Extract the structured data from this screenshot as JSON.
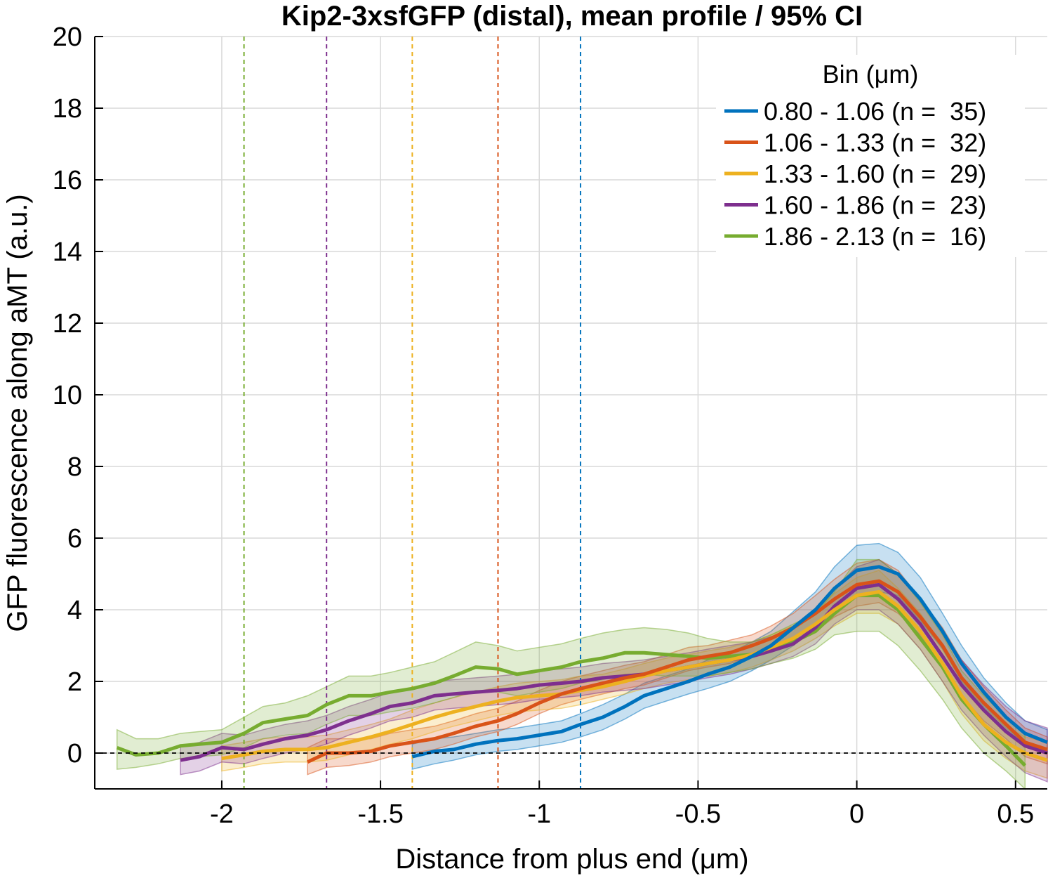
{
  "chart_data": {
    "type": "line",
    "title": "Kip2-3xsfGFP (distal), mean profile / 95% CI",
    "xlabel": "Distance from plus end (μm)",
    "ylabel": "GFP fluorescence along aMT (a.u.)",
    "xlim": [
      -2.4,
      0.6
    ],
    "ylim": [
      -1,
      20
    ],
    "xticks": [
      -2,
      -1.5,
      -1,
      -0.5,
      0,
      0.5
    ],
    "xtick_labels": [
      "-2",
      "-1.5",
      "-1",
      "-0.5",
      "0",
      "0.5"
    ],
    "yticks": [
      0,
      2,
      4,
      6,
      8,
      10,
      12,
      14,
      16,
      18,
      20
    ],
    "ytick_labels": [
      "0",
      "2",
      "4",
      "6",
      "8",
      "10",
      "12",
      "14",
      "16",
      "18",
      "20"
    ],
    "grid": true,
    "zero_line": {
      "y": 0,
      "style": "dashed",
      "color": "#000000"
    },
    "legend": {
      "title": "Bin (μm)",
      "position": "top-right"
    },
    "series": [
      {
        "name": "0.80 - 1.06 (n =  35)",
        "color": "#0072BD",
        "cutoff_x": -0.87,
        "x": [
          -1.4,
          -1.33,
          -1.27,
          -1.2,
          -1.13,
          -1.07,
          -1.0,
          -0.93,
          -0.87,
          -0.8,
          -0.73,
          -0.67,
          -0.6,
          -0.53,
          -0.47,
          -0.4,
          -0.33,
          -0.27,
          -0.2,
          -0.13,
          -0.07,
          0.0,
          0.07,
          0.13,
          0.2,
          0.27,
          0.33,
          0.4,
          0.47,
          0.53,
          0.6
        ],
        "y": [
          -0.1,
          0.05,
          0.1,
          0.25,
          0.35,
          0.4,
          0.5,
          0.6,
          0.8,
          1.0,
          1.3,
          1.6,
          1.8,
          2.0,
          2.2,
          2.4,
          2.7,
          3.0,
          3.5,
          4.0,
          4.6,
          5.1,
          5.2,
          5.0,
          4.3,
          3.4,
          2.5,
          1.7,
          1.0,
          0.55,
          0.3
        ],
        "ci_low": [
          -0.45,
          -0.3,
          -0.2,
          -0.05,
          0.05,
          0.1,
          0.2,
          0.3,
          0.45,
          0.65,
          0.95,
          1.25,
          1.45,
          1.65,
          1.8,
          2.0,
          2.3,
          2.6,
          3.0,
          3.5,
          4.0,
          4.4,
          4.5,
          4.4,
          3.7,
          2.9,
          2.0,
          1.3,
          0.7,
          0.25,
          0.0
        ],
        "ci_high": [
          0.25,
          0.4,
          0.45,
          0.55,
          0.65,
          0.7,
          0.8,
          0.9,
          1.1,
          1.35,
          1.65,
          1.95,
          2.15,
          2.35,
          2.6,
          2.8,
          3.1,
          3.4,
          3.95,
          4.5,
          5.2,
          5.8,
          5.85,
          5.6,
          4.9,
          3.9,
          3.0,
          2.1,
          1.4,
          0.9,
          0.65
        ]
      },
      {
        "name": "1.06 - 1.33 (n =  32)",
        "color": "#D95319",
        "cutoff_x": -1.13,
        "x": [
          -1.73,
          -1.67,
          -1.6,
          -1.53,
          -1.47,
          -1.4,
          -1.33,
          -1.27,
          -1.2,
          -1.13,
          -1.07,
          -1.0,
          -0.93,
          -0.87,
          -0.8,
          -0.73,
          -0.67,
          -0.6,
          -0.53,
          -0.47,
          -0.4,
          -0.33,
          -0.27,
          -0.2,
          -0.13,
          -0.07,
          0.0,
          0.07,
          0.13,
          0.2,
          0.27,
          0.33,
          0.4,
          0.47,
          0.53,
          0.6
        ],
        "y": [
          -0.25,
          0.0,
          0.0,
          0.05,
          0.2,
          0.3,
          0.4,
          0.55,
          0.75,
          0.9,
          1.1,
          1.4,
          1.65,
          1.8,
          1.95,
          2.1,
          2.2,
          2.4,
          2.6,
          2.7,
          2.8,
          3.0,
          3.2,
          3.5,
          3.9,
          4.3,
          4.7,
          4.8,
          4.5,
          3.8,
          3.0,
          2.1,
          1.4,
          0.8,
          0.3,
          0.1
        ],
        "ci_low": [
          -0.6,
          -0.4,
          -0.35,
          -0.25,
          -0.1,
          0.0,
          0.1,
          0.25,
          0.45,
          0.6,
          0.8,
          1.1,
          1.35,
          1.5,
          1.65,
          1.8,
          1.9,
          2.1,
          2.3,
          2.4,
          2.5,
          2.7,
          2.9,
          3.1,
          3.4,
          3.8,
          4.1,
          4.2,
          3.9,
          3.3,
          2.5,
          1.6,
          0.9,
          0.4,
          -0.1,
          -0.3
        ],
        "ci_high": [
          0.15,
          0.4,
          0.4,
          0.4,
          0.55,
          0.65,
          0.75,
          0.9,
          1.1,
          1.25,
          1.45,
          1.75,
          2.0,
          2.15,
          2.3,
          2.45,
          2.55,
          2.75,
          2.95,
          3.0,
          3.15,
          3.3,
          3.55,
          3.9,
          4.4,
          4.85,
          5.3,
          5.4,
          5.1,
          4.3,
          3.5,
          2.6,
          1.85,
          1.2,
          0.7,
          0.45
        ]
      },
      {
        "name": "1.33 - 1.60 (n =  29)",
        "color": "#EDB120",
        "cutoff_x": -1.4,
        "x": [
          -2.0,
          -1.93,
          -1.87,
          -1.8,
          -1.73,
          -1.67,
          -1.6,
          -1.53,
          -1.47,
          -1.4,
          -1.33,
          -1.27,
          -1.2,
          -1.13,
          -1.07,
          -1.0,
          -0.93,
          -0.87,
          -0.8,
          -0.73,
          -0.67,
          -0.6,
          -0.53,
          -0.47,
          -0.4,
          -0.33,
          -0.27,
          -0.2,
          -0.13,
          -0.07,
          0.0,
          0.07,
          0.13,
          0.2,
          0.27,
          0.33,
          0.4,
          0.47,
          0.53,
          0.6
        ],
        "y": [
          -0.15,
          -0.05,
          0.05,
          0.1,
          0.1,
          0.15,
          0.3,
          0.45,
          0.6,
          0.8,
          1.0,
          1.15,
          1.3,
          1.45,
          1.55,
          1.6,
          1.65,
          1.75,
          1.85,
          2.0,
          2.15,
          2.3,
          2.4,
          2.5,
          2.6,
          2.75,
          2.95,
          3.2,
          3.6,
          4.0,
          4.4,
          4.5,
          4.1,
          3.4,
          2.5,
          1.6,
          0.8,
          0.3,
          0.0,
          -0.2
        ],
        "ci_low": [
          -0.5,
          -0.4,
          -0.3,
          -0.25,
          -0.25,
          -0.2,
          -0.05,
          0.1,
          0.25,
          0.4,
          0.6,
          0.75,
          0.9,
          1.05,
          1.15,
          1.2,
          1.25,
          1.35,
          1.5,
          1.65,
          1.8,
          1.95,
          2.05,
          2.15,
          2.25,
          2.4,
          2.6,
          2.85,
          3.2,
          3.55,
          3.9,
          3.9,
          3.6,
          2.9,
          2.0,
          1.1,
          0.35,
          -0.15,
          -0.5,
          -0.7
        ],
        "ci_high": [
          0.2,
          0.3,
          0.4,
          0.45,
          0.45,
          0.5,
          0.65,
          0.8,
          0.95,
          1.2,
          1.4,
          1.55,
          1.7,
          1.85,
          1.95,
          2.0,
          2.05,
          2.15,
          2.2,
          2.35,
          2.5,
          2.65,
          2.75,
          2.85,
          2.95,
          3.1,
          3.3,
          3.55,
          4.0,
          4.45,
          4.9,
          5.1,
          4.6,
          3.9,
          3.0,
          2.1,
          1.25,
          0.75,
          0.45,
          0.3
        ]
      },
      {
        "name": "1.60 - 1.86 (n =  23)",
        "color": "#7E2F8E",
        "cutoff_x": -1.67,
        "x": [
          -2.13,
          -2.07,
          -2.0,
          -1.93,
          -1.87,
          -1.8,
          -1.73,
          -1.67,
          -1.6,
          -1.53,
          -1.47,
          -1.4,
          -1.33,
          -1.27,
          -1.2,
          -1.13,
          -1.07,
          -1.0,
          -0.93,
          -0.87,
          -0.8,
          -0.73,
          -0.67,
          -0.6,
          -0.53,
          -0.47,
          -0.4,
          -0.33,
          -0.27,
          -0.2,
          -0.13,
          -0.07,
          0.0,
          0.07,
          0.13,
          0.2,
          0.27,
          0.33,
          0.4,
          0.47,
          0.53,
          0.6
        ],
        "y": [
          -0.2,
          -0.1,
          0.15,
          0.1,
          0.25,
          0.4,
          0.5,
          0.65,
          0.9,
          1.1,
          1.3,
          1.4,
          1.6,
          1.65,
          1.7,
          1.75,
          1.8,
          1.9,
          1.95,
          2.0,
          2.1,
          2.15,
          2.2,
          2.3,
          2.4,
          2.5,
          2.6,
          2.7,
          2.85,
          3.05,
          3.5,
          4.1,
          4.6,
          4.7,
          4.3,
          3.6,
          2.7,
          1.9,
          1.2,
          0.6,
          0.2,
          0.0
        ],
        "ci_low": [
          -0.6,
          -0.5,
          -0.25,
          -0.3,
          -0.15,
          0.0,
          0.1,
          0.25,
          0.5,
          0.7,
          0.9,
          1.0,
          1.2,
          1.25,
          1.3,
          1.35,
          1.4,
          1.5,
          1.55,
          1.6,
          1.7,
          1.75,
          1.8,
          1.9,
          2.0,
          2.1,
          2.2,
          2.35,
          2.5,
          2.7,
          3.05,
          3.6,
          4.0,
          4.0,
          3.6,
          2.9,
          2.0,
          1.2,
          0.5,
          -0.1,
          -0.55,
          -0.8
        ],
        "ci_high": [
          0.2,
          0.3,
          0.55,
          0.5,
          0.65,
          0.8,
          0.9,
          1.05,
          1.3,
          1.5,
          1.7,
          1.8,
          2.0,
          2.05,
          2.1,
          2.15,
          2.2,
          2.3,
          2.35,
          2.4,
          2.5,
          2.55,
          2.6,
          2.7,
          2.8,
          2.9,
          3.0,
          3.1,
          3.25,
          3.45,
          3.95,
          4.6,
          5.2,
          5.4,
          5.0,
          4.3,
          3.4,
          2.6,
          1.9,
          1.3,
          0.9,
          0.7
        ]
      },
      {
        "name": "1.86 - 2.13 (n =  16)",
        "color": "#77AC30",
        "cutoff_x": -1.93,
        "x": [
          -2.33,
          -2.27,
          -2.2,
          -2.13,
          -2.07,
          -2.0,
          -1.93,
          -1.87,
          -1.8,
          -1.73,
          -1.67,
          -1.6,
          -1.53,
          -1.47,
          -1.4,
          -1.33,
          -1.27,
          -1.2,
          -1.13,
          -1.07,
          -1.0,
          -0.93,
          -0.87,
          -0.8,
          -0.73,
          -0.67,
          -0.6,
          -0.53,
          -0.47,
          -0.4,
          -0.33,
          -0.27,
          -0.2,
          -0.13,
          -0.07,
          0.0,
          0.07,
          0.13,
          0.2,
          0.27,
          0.33,
          0.4,
          0.47,
          0.53
        ],
        "y": [
          0.15,
          -0.05,
          0.0,
          0.2,
          0.25,
          0.3,
          0.55,
          0.85,
          0.95,
          1.05,
          1.35,
          1.6,
          1.6,
          1.7,
          1.8,
          1.95,
          2.15,
          2.4,
          2.35,
          2.2,
          2.3,
          2.4,
          2.55,
          2.65,
          2.8,
          2.8,
          2.75,
          2.7,
          2.65,
          2.7,
          2.75,
          2.9,
          3.1,
          3.4,
          3.9,
          4.4,
          4.4,
          4.0,
          3.2,
          2.4,
          1.5,
          0.8,
          0.2,
          -0.35
        ],
        "ci_low": [
          -0.45,
          -0.4,
          -0.3,
          -0.15,
          -0.1,
          -0.05,
          0.15,
          0.4,
          0.5,
          0.55,
          0.8,
          1.05,
          1.05,
          1.15,
          1.25,
          1.4,
          1.55,
          1.75,
          1.7,
          1.6,
          1.7,
          1.8,
          1.95,
          2.05,
          2.2,
          2.2,
          2.15,
          2.15,
          2.15,
          2.25,
          2.35,
          2.5,
          2.65,
          2.9,
          3.3,
          3.4,
          3.4,
          3.0,
          2.3,
          1.5,
          0.7,
          0.0,
          -0.5,
          -1.0
        ],
        "ci_high": [
          0.65,
          0.4,
          0.4,
          0.55,
          0.6,
          0.65,
          1.0,
          1.3,
          1.4,
          1.6,
          1.85,
          2.15,
          2.15,
          2.25,
          2.4,
          2.55,
          2.8,
          3.1,
          3.0,
          2.85,
          2.95,
          3.05,
          3.2,
          3.35,
          3.45,
          3.5,
          3.45,
          3.35,
          3.2,
          3.1,
          3.1,
          3.3,
          3.6,
          3.9,
          4.5,
          5.4,
          5.4,
          5.0,
          4.2,
          3.3,
          2.3,
          1.6,
          1.0,
          0.5
        ]
      }
    ]
  }
}
